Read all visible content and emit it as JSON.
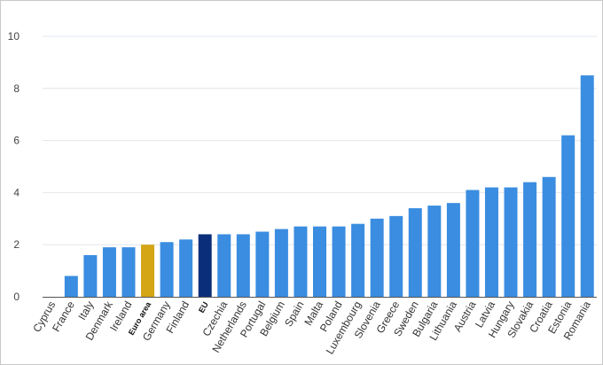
{
  "chart_data": {
    "type": "bar",
    "title": "",
    "xlabel": "",
    "ylabel": "",
    "ylim": [
      0,
      10
    ],
    "yticks": [
      0,
      2,
      4,
      6,
      8,
      10
    ],
    "grid": true,
    "legend": "none",
    "colors": {
      "default": "#3a8de0",
      "euro_area": "#d4a514",
      "eu": "#0b2e7a"
    },
    "categories": [
      "Cyprus",
      "France",
      "Italy",
      "Denmark",
      "Ireland",
      "Euro area",
      "Germany",
      "Finland",
      "EU",
      "Czechia",
      "Netherlands",
      "Portugal",
      "Belgium",
      "Spain",
      "Malta",
      "Poland",
      "Luxembourg",
      "Slovenia",
      "Greece",
      "Sweden",
      "Bulgaria",
      "Lithuania",
      "Austria",
      "Latvia",
      "Hungary",
      "Slovakia",
      "Croatia",
      "Estonia",
      "Romania"
    ],
    "values": [
      0.0,
      0.8,
      1.6,
      1.9,
      1.9,
      2.0,
      2.1,
      2.2,
      2.4,
      2.4,
      2.4,
      2.5,
      2.6,
      2.7,
      2.7,
      2.7,
      2.8,
      3.0,
      3.1,
      3.4,
      3.5,
      3.6,
      4.1,
      4.2,
      4.2,
      4.4,
      4.6,
      6.2,
      8.5
    ],
    "highlight": {
      "Euro area": "euro_area",
      "EU": "eu"
    }
  }
}
